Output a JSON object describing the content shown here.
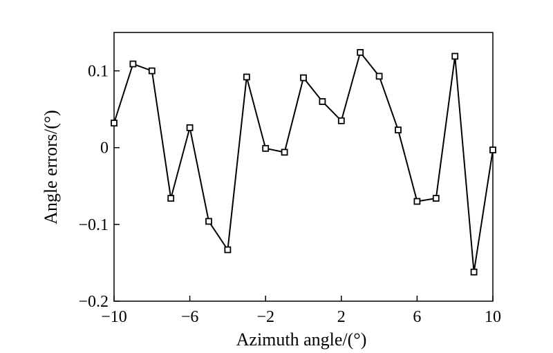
{
  "chart_data": {
    "type": "line",
    "title": "",
    "xlabel": "Azimuth angle/(°)",
    "ylabel": "Angle errors/(°)",
    "xlim": [
      -10,
      10
    ],
    "ylim": [
      -0.2,
      0.15
    ],
    "x_ticks": [
      -10,
      -6,
      -2,
      2,
      6,
      10
    ],
    "x_tick_labels": [
      "−10",
      "−6",
      "−2",
      "2",
      "6",
      "10"
    ],
    "y_ticks": [
      -0.2,
      -0.1,
      0,
      0.1
    ],
    "y_tick_labels": [
      "−0.2",
      "−0.1",
      "0",
      "0.1"
    ],
    "grid": false,
    "legend": "none",
    "marker": "square",
    "line_color": "#000000",
    "series": [
      {
        "x": [
          -10,
          -9,
          -8,
          -7,
          -6,
          -5,
          -4,
          -3,
          -2,
          -1,
          0,
          1,
          2,
          3,
          4,
          5,
          6,
          7,
          8,
          9,
          10
        ],
        "y": [
          0.032,
          0.109,
          0.1,
          -0.066,
          0.026,
          -0.096,
          -0.133,
          0.092,
          -0.001,
          -0.006,
          0.091,
          0.06,
          0.035,
          0.124,
          0.093,
          0.023,
          -0.07,
          -0.066,
          0.119,
          -0.162,
          -0.003
        ]
      }
    ]
  }
}
